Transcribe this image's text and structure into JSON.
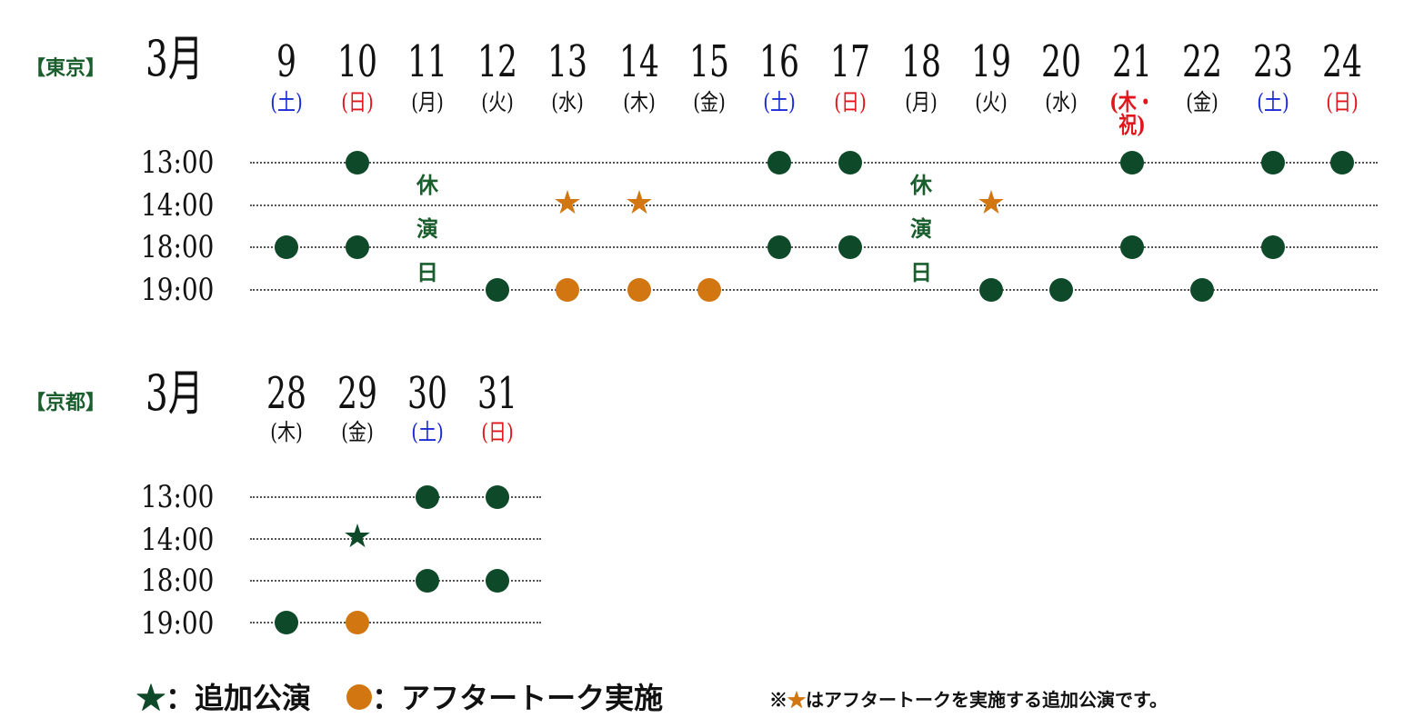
{
  "tokyo": {
    "city_label": "【東京】",
    "month_label": "3月",
    "closed_label": [
      "休",
      "演",
      "日"
    ],
    "days": [
      {
        "num": "9",
        "dow": "(土)",
        "color": "blue"
      },
      {
        "num": "10",
        "dow": "(日)",
        "color": "red"
      },
      {
        "num": "11",
        "dow": "(月)",
        "color": "black"
      },
      {
        "num": "12",
        "dow": "(火)",
        "color": "black"
      },
      {
        "num": "13",
        "dow": "(水)",
        "color": "black"
      },
      {
        "num": "14",
        "dow": "(木)",
        "color": "black"
      },
      {
        "num": "15",
        "dow": "(金)",
        "color": "black"
      },
      {
        "num": "16",
        "dow": "(土)",
        "color": "blue"
      },
      {
        "num": "17",
        "dow": "(日)",
        "color": "red"
      },
      {
        "num": "18",
        "dow": "(月)",
        "color": "black"
      },
      {
        "num": "19",
        "dow": "(火)",
        "color": "black"
      },
      {
        "num": "20",
        "dow": "(水)",
        "color": "black"
      },
      {
        "num": "21",
        "dow": "(木・祝)",
        "color": "red"
      },
      {
        "num": "22",
        "dow": "(金)",
        "color": "black"
      },
      {
        "num": "23",
        "dow": "(土)",
        "color": "blue"
      },
      {
        "num": "24",
        "dow": "(日)",
        "color": "red"
      }
    ],
    "times": [
      "13:00",
      "14:00",
      "18:00",
      "19:00"
    ],
    "marks": [
      {
        "day": "10",
        "time": "13:00",
        "type": "dot-green"
      },
      {
        "day": "16",
        "time": "13:00",
        "type": "dot-green"
      },
      {
        "day": "17",
        "time": "13:00",
        "type": "dot-green"
      },
      {
        "day": "21",
        "time": "13:00",
        "type": "dot-green"
      },
      {
        "day": "23",
        "time": "13:00",
        "type": "dot-green"
      },
      {
        "day": "24",
        "time": "13:00",
        "type": "dot-green"
      },
      {
        "day": "13",
        "time": "14:00",
        "type": "star-orange"
      },
      {
        "day": "14",
        "time": "14:00",
        "type": "star-orange"
      },
      {
        "day": "19",
        "time": "14:00",
        "type": "star-orange"
      },
      {
        "day": "9",
        "time": "18:00",
        "type": "dot-green"
      },
      {
        "day": "10",
        "time": "18:00",
        "type": "dot-green"
      },
      {
        "day": "16",
        "time": "18:00",
        "type": "dot-green"
      },
      {
        "day": "17",
        "time": "18:00",
        "type": "dot-green"
      },
      {
        "day": "21",
        "time": "18:00",
        "type": "dot-green"
      },
      {
        "day": "23",
        "time": "18:00",
        "type": "dot-green"
      },
      {
        "day": "12",
        "time": "19:00",
        "type": "dot-green"
      },
      {
        "day": "13",
        "time": "19:00",
        "type": "dot-orange"
      },
      {
        "day": "14",
        "time": "19:00",
        "type": "dot-orange"
      },
      {
        "day": "15",
        "time": "19:00",
        "type": "dot-orange"
      },
      {
        "day": "19",
        "time": "19:00",
        "type": "dot-green"
      },
      {
        "day": "20",
        "time": "19:00",
        "type": "dot-green"
      },
      {
        "day": "22",
        "time": "19:00",
        "type": "dot-green"
      }
    ],
    "closed_days": [
      "11",
      "18"
    ]
  },
  "kyoto": {
    "city_label": "【京都】",
    "month_label": "3月",
    "days": [
      {
        "num": "28",
        "dow": "(木)",
        "color": "black"
      },
      {
        "num": "29",
        "dow": "(金)",
        "color": "black"
      },
      {
        "num": "30",
        "dow": "(土)",
        "color": "blue"
      },
      {
        "num": "31",
        "dow": "(日)",
        "color": "red"
      }
    ],
    "times": [
      "13:00",
      "14:00",
      "18:00",
      "19:00"
    ],
    "marks": [
      {
        "day": "30",
        "time": "13:00",
        "type": "dot-green"
      },
      {
        "day": "31",
        "time": "13:00",
        "type": "dot-green"
      },
      {
        "day": "29",
        "time": "14:00",
        "type": "star-green"
      },
      {
        "day": "30",
        "time": "18:00",
        "type": "dot-green"
      },
      {
        "day": "31",
        "time": "18:00",
        "type": "dot-green"
      },
      {
        "day": "28",
        "time": "19:00",
        "type": "dot-green"
      },
      {
        "day": "29",
        "time": "19:00",
        "type": "dot-orange"
      }
    ]
  },
  "legend": {
    "star_symbol": "★",
    "star_text": "：追加公演",
    "dot_text": "：アフタートーク実施",
    "note_prefix": "※",
    "note_star": "★",
    "note_text": "はアフタートークを実施する追加公演です。"
  },
  "colors": {
    "green": "#0e4a2a",
    "orange": "#d27612",
    "blue": "#1a2bd6",
    "red": "#e3151c",
    "city_green": "#1b5e2e"
  }
}
